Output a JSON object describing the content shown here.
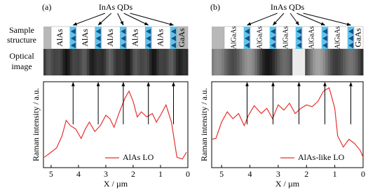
{
  "chart_data": [
    {
      "type": "line",
      "panel_label": "(a)",
      "qd_label": "InAs QDs",
      "row_labels": [
        "Sample",
        "structure",
        "Optical",
        "image"
      ],
      "layer_labels": [
        "AlAs",
        "AlAs",
        "AlAs",
        "AlAs",
        "AlAs"
      ],
      "cap_label": "GaAs",
      "x": [
        5.25,
        5.0,
        4.8,
        4.6,
        4.45,
        4.3,
        4.1,
        3.9,
        3.75,
        3.6,
        3.4,
        3.2,
        3.0,
        2.85,
        2.7,
        2.5,
        2.3,
        2.15,
        2.0,
        1.85,
        1.7,
        1.5,
        1.3,
        1.15,
        1.0,
        0.8,
        0.6,
        0.4,
        0.2,
        0.05
      ],
      "series": [
        {
          "name": "AlAs LO",
          "color": "#e8312f",
          "values": [
            0.12,
            0.18,
            0.23,
            0.37,
            0.55,
            0.49,
            0.45,
            0.34,
            0.45,
            0.53,
            0.42,
            0.49,
            0.61,
            0.57,
            0.47,
            0.65,
            0.81,
            0.89,
            0.77,
            0.59,
            0.65,
            0.59,
            0.63,
            0.53,
            0.61,
            0.73,
            0.53,
            0.12,
            0.1,
            0.18
          ]
        }
      ],
      "xlim": [
        5.28,
        0
      ],
      "xticks": [
        5,
        4,
        3,
        2,
        1,
        0
      ],
      "ylim": [
        0,
        1
      ],
      "xlabel": "X / µm",
      "ylabel": "Raman intensity / a.u."
    },
    {
      "type": "line",
      "panel_label": "(b)",
      "qd_label": "InAs QDs",
      "layer_labels": [
        "AlGaAs",
        "AlGaAs",
        "AlGaAs",
        "AlGaAs",
        "AlGaAs"
      ],
      "cap_label": "GaAs",
      "x": [
        5.35,
        5.2,
        5.0,
        4.8,
        4.6,
        4.4,
        4.2,
        4.05,
        3.85,
        3.6,
        3.4,
        3.2,
        3.0,
        2.8,
        2.6,
        2.4,
        2.2,
        2.0,
        1.8,
        1.6,
        1.4,
        1.2,
        1.0,
        0.9,
        0.7,
        0.5,
        0.3,
        0.1,
        0.0
      ],
      "series": [
        {
          "name": "AlAs-like LO",
          "color": "#e8312f",
          "values": [
            0.33,
            0.34,
            0.53,
            0.65,
            0.57,
            0.63,
            0.49,
            0.61,
            0.72,
            0.63,
            0.69,
            0.57,
            0.73,
            0.67,
            0.75,
            0.63,
            0.69,
            0.73,
            0.71,
            0.77,
            0.89,
            0.93,
            0.69,
            0.37,
            0.24,
            0.33,
            0.28,
            0.2,
            0.12
          ]
        }
      ],
      "xlim": [
        5.35,
        0
      ],
      "xticks": [
        5,
        4,
        3,
        2,
        1,
        0
      ],
      "ylim": [
        0,
        1
      ],
      "xlabel": "X / µm",
      "ylabel": "Raman intensity / a.u."
    }
  ]
}
